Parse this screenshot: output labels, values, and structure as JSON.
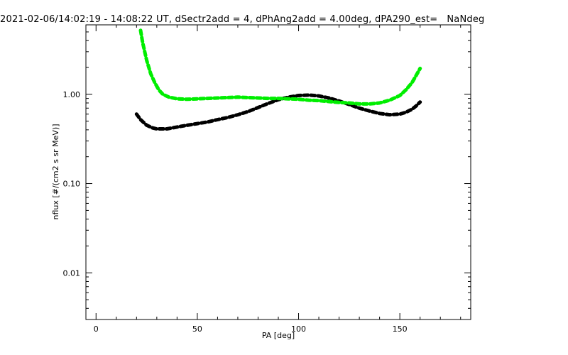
{
  "chart_data": {
    "type": "line",
    "title": "2021-02-06/14:02:19 - 14:08:22 UT, dSectr2add = 4, dPhAng2add = 4.00deg, dPA290_est=   NaNdeg",
    "xlabel": "PA [deg]",
    "ylabel": "nflux [#/(cm2 s sr MeV)]",
    "xlim": [
      -5,
      185
    ],
    "ylim": [
      0.003,
      6
    ],
    "y_scale": "log",
    "x_ticks": [
      0,
      50,
      100,
      150
    ],
    "x_tick_labels": [
      "0",
      "50",
      "100",
      "150"
    ],
    "y_ticks": [
      0.01,
      0.1,
      1.0
    ],
    "y_tick_labels": [
      "0.01",
      "0.10",
      "1.00"
    ],
    "grid": false,
    "series": [
      {
        "color": "#000000",
        "x": [
          20,
          22,
          25,
          28,
          30,
          35,
          40,
          45,
          50,
          55,
          60,
          65,
          70,
          75,
          80,
          85,
          90,
          95,
          100,
          105,
          110,
          115,
          120,
          125,
          130,
          135,
          140,
          145,
          150,
          153,
          156,
          158,
          160
        ],
        "y": [
          0.6,
          0.52,
          0.45,
          0.42,
          0.41,
          0.41,
          0.43,
          0.45,
          0.47,
          0.49,
          0.52,
          0.55,
          0.59,
          0.64,
          0.71,
          0.79,
          0.87,
          0.93,
          0.97,
          0.98,
          0.96,
          0.91,
          0.84,
          0.77,
          0.7,
          0.65,
          0.61,
          0.59,
          0.6,
          0.63,
          0.68,
          0.74,
          0.82
        ]
      },
      {
        "color": "#00ee00",
        "x": [
          22,
          23,
          25,
          27,
          29,
          31,
          33,
          36,
          40,
          45,
          50,
          55,
          60,
          65,
          70,
          75,
          80,
          85,
          90,
          95,
          100,
          105,
          110,
          115,
          120,
          125,
          130,
          135,
          140,
          145,
          150,
          153,
          156,
          158,
          160
        ],
        "y": [
          5.2,
          3.8,
          2.4,
          1.7,
          1.35,
          1.12,
          1.0,
          0.93,
          0.89,
          0.88,
          0.89,
          0.9,
          0.91,
          0.92,
          0.93,
          0.92,
          0.91,
          0.9,
          0.9,
          0.89,
          0.88,
          0.86,
          0.85,
          0.83,
          0.81,
          0.8,
          0.78,
          0.78,
          0.8,
          0.86,
          0.97,
          1.12,
          1.35,
          1.62,
          1.95
        ]
      }
    ]
  }
}
